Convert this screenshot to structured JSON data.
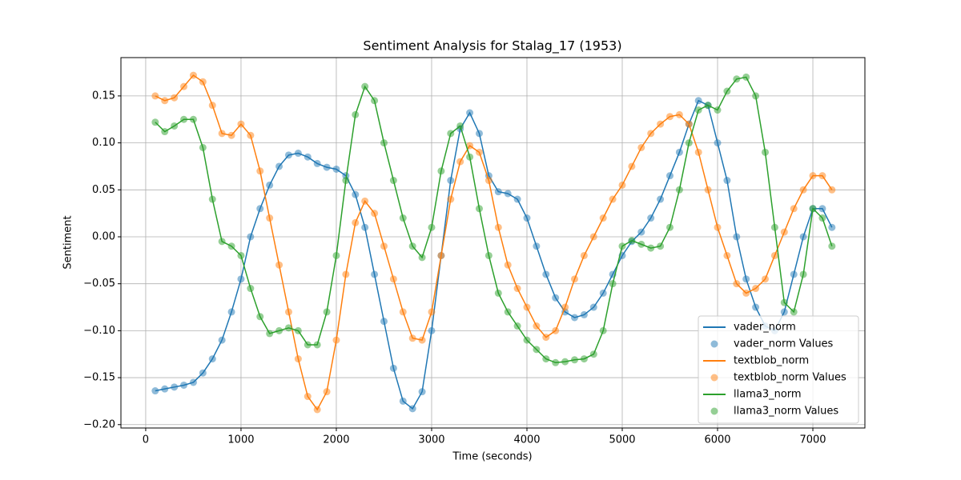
{
  "chart_data": {
    "type": "line",
    "title": "Sentiment Analysis for Stalag_17 (1953)",
    "x_label": "Time (seconds)",
    "y_label": "Sentiment",
    "x": [
      100,
      200,
      300,
      400,
      500,
      600,
      700,
      800,
      900,
      1000,
      1100,
      1200,
      1300,
      1400,
      1500,
      1600,
      1700,
      1800,
      1900,
      2000,
      2100,
      2200,
      2300,
      2400,
      2500,
      2600,
      2700,
      2800,
      2900,
      3000,
      3100,
      3200,
      3300,
      3400,
      3500,
      3600,
      3700,
      3800,
      3900,
      4000,
      4100,
      4200,
      4300,
      4400,
      4500,
      4600,
      4700,
      4800,
      4900,
      5000,
      5100,
      5200,
      5300,
      5400,
      5500,
      5600,
      5700,
      5800,
      5900,
      6000,
      6100,
      6200,
      6300,
      6400,
      6500,
      6600,
      6700,
      6800,
      6900,
      7000,
      7100,
      7200
    ],
    "series": [
      {
        "name": "vader_norm",
        "scatter_name": "vader_norm Values",
        "color": "#1f77b4",
        "values": [
          -0.164,
          -0.162,
          -0.16,
          -0.158,
          -0.155,
          -0.145,
          -0.13,
          -0.11,
          -0.08,
          -0.045,
          0,
          0.03,
          0.055,
          0.075,
          0.087,
          0.089,
          0.085,
          0.078,
          0.074,
          0.072,
          0.065,
          0.045,
          0.01,
          -0.04,
          -0.09,
          -0.14,
          -0.175,
          -0.183,
          -0.165,
          -0.1,
          -0.02,
          0.06,
          0.115,
          0.132,
          0.11,
          0.065,
          0.048,
          0.046,
          0.04,
          0.02,
          -0.01,
          -0.04,
          -0.065,
          -0.08,
          -0.086,
          -0.083,
          -0.075,
          -0.06,
          -0.04,
          -0.02,
          -0.005,
          0.005,
          0.02,
          0.04,
          0.065,
          0.09,
          0.12,
          0.145,
          0.14,
          0.1,
          0.06,
          0,
          -0.045,
          -0.075,
          -0.095,
          -0.1,
          -0.08,
          -0.04,
          0,
          0.03,
          0.03,
          0.01
        ]
      },
      {
        "name": "textblob_norm",
        "scatter_name": "textblob_norm Values",
        "color": "#ff7f0e",
        "values": [
          0.15,
          0.145,
          0.148,
          0.16,
          0.172,
          0.165,
          0.14,
          0.11,
          0.108,
          0.12,
          0.108,
          0.07,
          0.02,
          -0.03,
          -0.08,
          -0.13,
          -0.17,
          -0.184,
          -0.165,
          -0.11,
          -0.04,
          0.015,
          0.038,
          0.025,
          -0.01,
          -0.045,
          -0.08,
          -0.108,
          -0.11,
          -0.08,
          -0.02,
          0.04,
          0.08,
          0.097,
          0.09,
          0.06,
          0.01,
          -0.03,
          -0.055,
          -0.075,
          -0.095,
          -0.107,
          -0.1,
          -0.075,
          -0.045,
          -0.02,
          0,
          0.02,
          0.04,
          0.055,
          0.075,
          0.095,
          0.11,
          0.12,
          0.128,
          0.13,
          0.12,
          0.09,
          0.05,
          0.01,
          -0.02,
          -0.05,
          -0.06,
          -0.055,
          -0.045,
          -0.02,
          0.005,
          0.03,
          0.05,
          0.065,
          0.065,
          0.05
        ]
      },
      {
        "name": "llama3_norm",
        "scatter_name": "llama3_norm Values",
        "color": "#2ca02c",
        "values": [
          0.122,
          0.112,
          0.118,
          0.125,
          0.125,
          0.095,
          0.04,
          -0.005,
          -0.01,
          -0.02,
          -0.055,
          -0.085,
          -0.103,
          -0.1,
          -0.097,
          -0.1,
          -0.115,
          -0.115,
          -0.08,
          -0.02,
          0.06,
          0.13,
          0.16,
          0.145,
          0.1,
          0.06,
          0.02,
          -0.01,
          -0.022,
          0.01,
          0.07,
          0.11,
          0.118,
          0.085,
          0.03,
          -0.02,
          -0.06,
          -0.08,
          -0.095,
          -0.11,
          -0.12,
          -0.13,
          -0.134,
          -0.133,
          -0.131,
          -0.13,
          -0.125,
          -0.1,
          -0.05,
          -0.01,
          -0.004,
          -0.008,
          -0.012,
          -0.01,
          0.01,
          0.05,
          0.1,
          0.135,
          0.14,
          0.135,
          0.155,
          0.168,
          0.17,
          0.15,
          0.09,
          0.01,
          -0.07,
          -0.08,
          -0.04,
          0.03,
          0.02,
          -0.01
        ]
      }
    ],
    "xlim": [
      -260,
      7546
    ],
    "ylim": [
      -0.2036,
      0.1908
    ],
    "xticks": [
      0,
      1000,
      2000,
      3000,
      4000,
      5000,
      6000,
      7000
    ],
    "yticks": [
      {
        "value": -0.2,
        "label": "−0.20"
      },
      {
        "value": -0.15,
        "label": "−0.15"
      },
      {
        "value": -0.1,
        "label": "−0.10"
      },
      {
        "value": -0.05,
        "label": "−0.05"
      },
      {
        "value": 0,
        "label": "0.00"
      },
      {
        "value": 0.05,
        "label": "0.05"
      },
      {
        "value": 0.1,
        "label": "0.10"
      },
      {
        "value": 0.15,
        "label": "0.15"
      }
    ],
    "grid": true,
    "legend": "lower right"
  }
}
